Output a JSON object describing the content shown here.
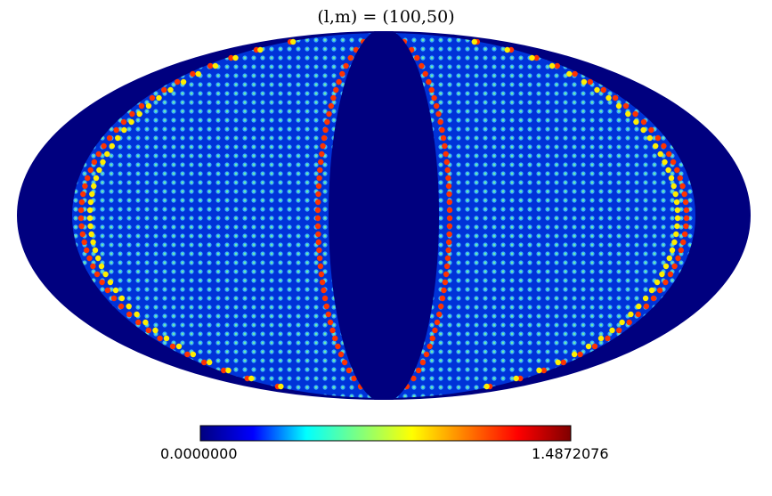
{
  "chart_data": {
    "type": "heatmap",
    "projection": "mollweide",
    "title": "(l,m) = (100,50)",
    "colormap": "jet",
    "colormap_stops": [
      "#00007f",
      "#0000ff",
      "#00ffff",
      "#7fff7f",
      "#ffff00",
      "#ff7f00",
      "#ff0000",
      "#7f0000"
    ],
    "background_value_color": "#00007f",
    "colorbar": {
      "min_label": "0.0000000",
      "max_label": "1.4872076",
      "min": 0.0,
      "max": 1.4872076
    },
    "spherical_harmonic": {
      "l": 100,
      "m": 50
    }
  }
}
